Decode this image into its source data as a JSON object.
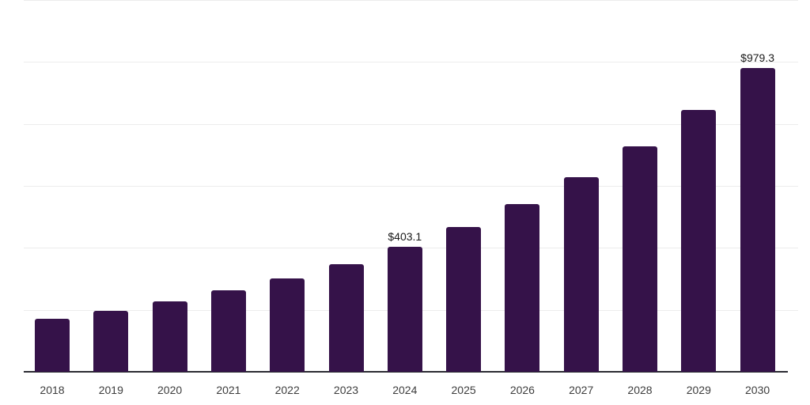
{
  "chart_data": {
    "type": "bar",
    "title": "",
    "categories": [
      "2018",
      "2019",
      "2020",
      "2021",
      "2022",
      "2023",
      "2024",
      "2025",
      "2026",
      "2027",
      "2028",
      "2029",
      "2030"
    ],
    "values": [
      171,
      197,
      227,
      262,
      302,
      346,
      403.1,
      466,
      540,
      627,
      727,
      845,
      979.3
    ],
    "data_labels": [
      "",
      "",
      "",
      "",
      "",
      "",
      "$403.1",
      "",
      "",
      "",
      "",
      "",
      "$979.3"
    ],
    "currency_prefix": "$",
    "xlabel": "",
    "ylabel": "",
    "ylim": [
      0,
      1200
    ],
    "grid_step": 200,
    "grid": "horizontal",
    "y_tick_labels_visible": false,
    "legend_position": "none",
    "colors": {
      "bar_fill": "#351249",
      "axis_line": "#2b2b33",
      "gridline": "#ececec",
      "data_label_text": "#1a1a1a",
      "x_tick_text": "#3d3d3d",
      "background": "#ffffff"
    }
  }
}
